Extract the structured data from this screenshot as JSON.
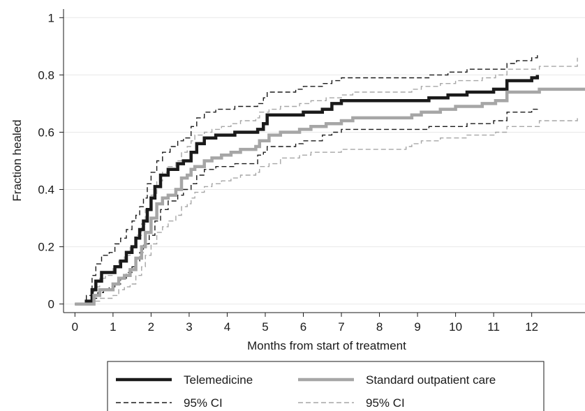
{
  "chart_data": {
    "type": "line",
    "step": true,
    "title": "",
    "xlabel": "Months from start of treatment",
    "ylabel": "Fraction healed",
    "xlim": [
      -0.3,
      13.4
    ],
    "ylim": [
      -0.03,
      1.03
    ],
    "x_ticks": [
      0,
      1,
      2,
      3,
      4,
      5,
      6,
      7,
      8,
      9,
      10,
      11,
      12
    ],
    "x_tick_labels": [
      "0",
      "1",
      "2",
      "3",
      "4",
      "5",
      "6",
      "7",
      "8",
      "9",
      "10",
      "11",
      "12"
    ],
    "y_ticks": [
      0,
      0.2,
      0.4,
      0.6,
      0.8,
      1
    ],
    "y_tick_labels": [
      "0",
      "0.2",
      "0.4",
      "0.6",
      "0.8",
      "1"
    ],
    "grid": "horizontal",
    "legend_position": "bottom",
    "series": [
      {
        "name": "Telemedicine",
        "color": "#1a1a1a",
        "style": "solid-thick",
        "points": [
          [
            0,
            0
          ],
          [
            0.3,
            0
          ],
          [
            0.3,
            0.01
          ],
          [
            0.45,
            0.05
          ],
          [
            0.55,
            0.08
          ],
          [
            0.7,
            0.11
          ],
          [
            0.9,
            0.11
          ],
          [
            1.05,
            0.13
          ],
          [
            1.2,
            0.15
          ],
          [
            1.35,
            0.18
          ],
          [
            1.5,
            0.2
          ],
          [
            1.6,
            0.23
          ],
          [
            1.7,
            0.26
          ],
          [
            1.8,
            0.29
          ],
          [
            1.9,
            0.33
          ],
          [
            2.0,
            0.37
          ],
          [
            2.1,
            0.41
          ],
          [
            2.25,
            0.45
          ],
          [
            2.45,
            0.47
          ],
          [
            2.7,
            0.49
          ],
          [
            2.85,
            0.5
          ],
          [
            3.05,
            0.53
          ],
          [
            3.2,
            0.56
          ],
          [
            3.4,
            0.58
          ],
          [
            3.7,
            0.59
          ],
          [
            4.0,
            0.59
          ],
          [
            4.2,
            0.6
          ],
          [
            4.8,
            0.61
          ],
          [
            4.95,
            0.63
          ],
          [
            5.05,
            0.66
          ],
          [
            5.3,
            0.66
          ],
          [
            5.8,
            0.66
          ],
          [
            6.0,
            0.67
          ],
          [
            6.5,
            0.68
          ],
          [
            6.75,
            0.7
          ],
          [
            7.0,
            0.71
          ],
          [
            8.0,
            0.71
          ],
          [
            9.0,
            0.71
          ],
          [
            9.3,
            0.72
          ],
          [
            9.8,
            0.73
          ],
          [
            10.3,
            0.74
          ],
          [
            10.6,
            0.74
          ],
          [
            11.0,
            0.75
          ],
          [
            11.35,
            0.78
          ],
          [
            11.6,
            0.78
          ],
          [
            12.0,
            0.79
          ],
          [
            12.15,
            0.8
          ]
        ]
      },
      {
        "name": "Standard outpatient care",
        "color": "#a6a6a6",
        "style": "solid-thick",
        "points": [
          [
            0,
            0
          ],
          [
            0.45,
            0
          ],
          [
            0.5,
            0.03
          ],
          [
            0.65,
            0.05
          ],
          [
            0.8,
            0.05
          ],
          [
            1.0,
            0.07
          ],
          [
            1.15,
            0.09
          ],
          [
            1.3,
            0.1
          ],
          [
            1.45,
            0.12
          ],
          [
            1.6,
            0.16
          ],
          [
            1.75,
            0.2
          ],
          [
            1.85,
            0.25
          ],
          [
            2.0,
            0.3
          ],
          [
            2.15,
            0.35
          ],
          [
            2.3,
            0.37
          ],
          [
            2.45,
            0.38
          ],
          [
            2.65,
            0.4
          ],
          [
            2.8,
            0.44
          ],
          [
            2.95,
            0.45
          ],
          [
            3.05,
            0.47
          ],
          [
            3.15,
            0.48
          ],
          [
            3.4,
            0.5
          ],
          [
            3.6,
            0.51
          ],
          [
            3.85,
            0.52
          ],
          [
            4.1,
            0.53
          ],
          [
            4.35,
            0.54
          ],
          [
            4.75,
            0.55
          ],
          [
            4.85,
            0.57
          ],
          [
            5.1,
            0.59
          ],
          [
            5.4,
            0.6
          ],
          [
            5.9,
            0.61
          ],
          [
            6.2,
            0.62
          ],
          [
            6.6,
            0.63
          ],
          [
            7.0,
            0.64
          ],
          [
            7.3,
            0.65
          ],
          [
            8.0,
            0.65
          ],
          [
            8.7,
            0.65
          ],
          [
            8.85,
            0.66
          ],
          [
            9.1,
            0.67
          ],
          [
            9.6,
            0.68
          ],
          [
            10.0,
            0.69
          ],
          [
            10.3,
            0.69
          ],
          [
            10.7,
            0.7
          ],
          [
            11.05,
            0.71
          ],
          [
            11.35,
            0.74
          ],
          [
            11.8,
            0.74
          ],
          [
            12.2,
            0.75
          ],
          [
            13.4,
            0.75
          ]
        ]
      },
      {
        "name": "95% CI",
        "color": "#1a1a1a",
        "style": "dashed",
        "band": "upper",
        "points": [
          [
            0,
            0
          ],
          [
            0.3,
            0
          ],
          [
            0.3,
            0.03
          ],
          [
            0.45,
            0.1
          ],
          [
            0.55,
            0.14
          ],
          [
            0.7,
            0.17
          ],
          [
            0.9,
            0.18
          ],
          [
            1.05,
            0.21
          ],
          [
            1.2,
            0.23
          ],
          [
            1.35,
            0.26
          ],
          [
            1.5,
            0.29
          ],
          [
            1.6,
            0.31
          ],
          [
            1.7,
            0.34
          ],
          [
            1.8,
            0.37
          ],
          [
            1.9,
            0.42
          ],
          [
            2.0,
            0.46
          ],
          [
            2.15,
            0.5
          ],
          [
            2.3,
            0.53
          ],
          [
            2.5,
            0.55
          ],
          [
            2.7,
            0.57
          ],
          [
            2.85,
            0.58
          ],
          [
            3.05,
            0.62
          ],
          [
            3.2,
            0.65
          ],
          [
            3.4,
            0.67
          ],
          [
            3.7,
            0.68
          ],
          [
            4.2,
            0.69
          ],
          [
            4.8,
            0.7
          ],
          [
            4.95,
            0.72
          ],
          [
            5.05,
            0.74
          ],
          [
            5.8,
            0.75
          ],
          [
            6.0,
            0.76
          ],
          [
            6.5,
            0.77
          ],
          [
            6.75,
            0.78
          ],
          [
            7.0,
            0.79
          ],
          [
            8.0,
            0.79
          ],
          [
            9.0,
            0.79
          ],
          [
            9.3,
            0.8
          ],
          [
            9.8,
            0.81
          ],
          [
            10.3,
            0.82
          ],
          [
            11.0,
            0.82
          ],
          [
            11.35,
            0.84
          ],
          [
            11.6,
            0.85
          ],
          [
            12.0,
            0.86
          ],
          [
            12.15,
            0.87
          ]
        ]
      },
      {
        "name": "95% CI",
        "color": "#1a1a1a",
        "style": "dashed",
        "band": "lower",
        "points": [
          [
            0,
            0
          ],
          [
            0.3,
            0
          ],
          [
            0.35,
            0
          ],
          [
            0.45,
            0.02
          ],
          [
            0.6,
            0.04
          ],
          [
            0.75,
            0.05
          ],
          [
            0.9,
            0.06
          ],
          [
            1.05,
            0.07
          ],
          [
            1.2,
            0.09
          ],
          [
            1.35,
            0.11
          ],
          [
            1.5,
            0.13
          ],
          [
            1.6,
            0.15
          ],
          [
            1.7,
            0.18
          ],
          [
            1.8,
            0.21
          ],
          [
            1.95,
            0.24
          ],
          [
            2.1,
            0.29
          ],
          [
            2.25,
            0.33
          ],
          [
            2.45,
            0.36
          ],
          [
            2.7,
            0.38
          ],
          [
            2.85,
            0.4
          ],
          [
            3.05,
            0.42
          ],
          [
            3.2,
            0.45
          ],
          [
            3.4,
            0.47
          ],
          [
            3.7,
            0.48
          ],
          [
            4.2,
            0.49
          ],
          [
            4.8,
            0.52
          ],
          [
            4.95,
            0.53
          ],
          [
            5.05,
            0.55
          ],
          [
            5.8,
            0.56
          ],
          [
            6.0,
            0.57
          ],
          [
            6.5,
            0.59
          ],
          [
            6.75,
            0.6
          ],
          [
            7.0,
            0.61
          ],
          [
            8.0,
            0.61
          ],
          [
            9.0,
            0.61
          ],
          [
            9.3,
            0.62
          ],
          [
            9.8,
            0.62
          ],
          [
            10.3,
            0.63
          ],
          [
            11.0,
            0.64
          ],
          [
            11.35,
            0.67
          ],
          [
            11.6,
            0.67
          ],
          [
            12.0,
            0.68
          ],
          [
            12.15,
            0.69
          ]
        ]
      },
      {
        "name": "95% CI",
        "color": "#a6a6a6",
        "style": "dashed",
        "band": "upper",
        "points": [
          [
            0,
            0
          ],
          [
            0.45,
            0
          ],
          [
            0.5,
            0.06
          ],
          [
            0.65,
            0.09
          ],
          [
            0.8,
            0.1
          ],
          [
            1.0,
            0.13
          ],
          [
            1.15,
            0.15
          ],
          [
            1.3,
            0.17
          ],
          [
            1.45,
            0.2
          ],
          [
            1.6,
            0.24
          ],
          [
            1.75,
            0.28
          ],
          [
            1.85,
            0.33
          ],
          [
            2.0,
            0.38
          ],
          [
            2.15,
            0.43
          ],
          [
            2.3,
            0.46
          ],
          [
            2.45,
            0.48
          ],
          [
            2.65,
            0.5
          ],
          [
            2.8,
            0.53
          ],
          [
            2.95,
            0.55
          ],
          [
            3.05,
            0.57
          ],
          [
            3.15,
            0.59
          ],
          [
            3.4,
            0.6
          ],
          [
            3.6,
            0.61
          ],
          [
            3.85,
            0.62
          ],
          [
            4.1,
            0.63
          ],
          [
            4.35,
            0.64
          ],
          [
            4.75,
            0.65
          ],
          [
            4.85,
            0.67
          ],
          [
            5.1,
            0.68
          ],
          [
            5.4,
            0.69
          ],
          [
            5.9,
            0.7
          ],
          [
            6.2,
            0.71
          ],
          [
            6.6,
            0.72
          ],
          [
            7.0,
            0.73
          ],
          [
            7.3,
            0.74
          ],
          [
            8.0,
            0.74
          ],
          [
            8.7,
            0.74
          ],
          [
            8.85,
            0.75
          ],
          [
            9.1,
            0.76
          ],
          [
            9.6,
            0.77
          ],
          [
            10.0,
            0.78
          ],
          [
            10.3,
            0.78
          ],
          [
            10.7,
            0.79
          ],
          [
            11.05,
            0.8
          ],
          [
            11.35,
            0.82
          ],
          [
            11.8,
            0.82
          ],
          [
            12.2,
            0.83
          ],
          [
            13.2,
            0.83
          ],
          [
            13.2,
            0.86
          ]
        ]
      },
      {
        "name": "95% CI",
        "color": "#a6a6a6",
        "style": "dashed",
        "band": "lower",
        "points": [
          [
            0,
            0
          ],
          [
            0.45,
            0
          ],
          [
            0.5,
            0.01
          ],
          [
            0.65,
            0.02
          ],
          [
            0.8,
            0.02
          ],
          [
            1.0,
            0.03
          ],
          [
            1.15,
            0.05
          ],
          [
            1.3,
            0.06
          ],
          [
            1.45,
            0.07
          ],
          [
            1.6,
            0.1
          ],
          [
            1.75,
            0.13
          ],
          [
            1.85,
            0.17
          ],
          [
            2.0,
            0.21
          ],
          [
            2.15,
            0.25
          ],
          [
            2.3,
            0.27
          ],
          [
            2.45,
            0.29
          ],
          [
            2.65,
            0.31
          ],
          [
            2.8,
            0.34
          ],
          [
            2.95,
            0.35
          ],
          [
            3.05,
            0.37
          ],
          [
            3.15,
            0.39
          ],
          [
            3.4,
            0.41
          ],
          [
            3.6,
            0.42
          ],
          [
            3.85,
            0.43
          ],
          [
            4.1,
            0.44
          ],
          [
            4.35,
            0.45
          ],
          [
            4.75,
            0.46
          ],
          [
            4.85,
            0.48
          ],
          [
            5.1,
            0.49
          ],
          [
            5.4,
            0.51
          ],
          [
            5.9,
            0.52
          ],
          [
            6.2,
            0.53
          ],
          [
            6.6,
            0.53
          ],
          [
            7.0,
            0.54
          ],
          [
            7.3,
            0.54
          ],
          [
            8.0,
            0.54
          ],
          [
            8.7,
            0.55
          ],
          [
            8.85,
            0.56
          ],
          [
            9.1,
            0.57
          ],
          [
            9.6,
            0.58
          ],
          [
            10.0,
            0.58
          ],
          [
            10.3,
            0.59
          ],
          [
            10.7,
            0.59
          ],
          [
            11.05,
            0.6
          ],
          [
            11.35,
            0.62
          ],
          [
            11.8,
            0.62
          ],
          [
            12.2,
            0.64
          ],
          [
            13.2,
            0.64
          ],
          [
            13.2,
            0.65
          ]
        ]
      }
    ],
    "legend": [
      {
        "label": "Telemedicine",
        "color": "#1a1a1a",
        "style": "solid-thick"
      },
      {
        "label": "Standard outpatient care",
        "color": "#a6a6a6",
        "style": "solid-thick"
      },
      {
        "label": "95% CI",
        "color": "#1a1a1a",
        "style": "dashed"
      },
      {
        "label": "95% CI",
        "color": "#a6a6a6",
        "style": "dashed"
      }
    ]
  }
}
